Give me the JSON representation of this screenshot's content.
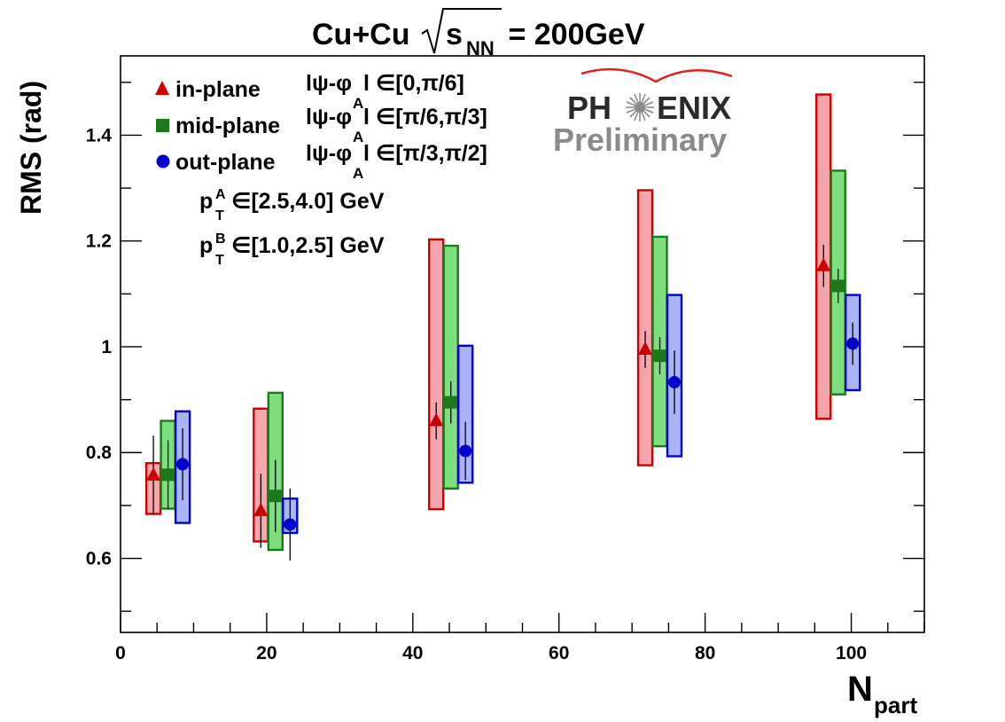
{
  "chart_data": {
    "type": "scatter",
    "title": {
      "main": "Cu+Cu",
      "sqrt": "s",
      "sub": "NN",
      "tail": " = 200GeV"
    },
    "xlabel": {
      "main": "N",
      "sub": "part"
    },
    "ylabel": "RMS (rad)",
    "xlim": [
      0,
      110
    ],
    "ylim": [
      0.46,
      1.55
    ],
    "x_ticks": [
      0,
      20,
      40,
      60,
      80,
      100
    ],
    "x_tick_labels": [
      "0",
      "20",
      "40",
      "60",
      "80",
      "100"
    ],
    "y_ticks": [
      0.6,
      0.8,
      1.0,
      1.2,
      1.4
    ],
    "y_tick_labels": [
      "0.6",
      "0.8",
      "1",
      "1.2",
      "1.4"
    ],
    "legend_position": "top-left",
    "series": [
      {
        "name": "in-plane",
        "marker": "triangle",
        "color": "#cc0000",
        "band_fill": "#f4a6ac",
        "band_stroke": "#cc0000",
        "x": [
          4.5,
          19.2,
          43.2,
          71.8,
          96.2
        ],
        "y": [
          0.757,
          0.69,
          0.86,
          0.995,
          1.153
        ],
        "stat_err": [
          0.075,
          0.07,
          0.035,
          0.035,
          0.04
        ],
        "sys_low": [
          0.684,
          0.632,
          0.693,
          0.776,
          0.864
        ],
        "sys_high": [
          0.78,
          0.883,
          1.203,
          1.296,
          1.477
        ]
      },
      {
        "name": "mid-plane",
        "marker": "square",
        "color": "#1a7a1a",
        "band_fill": "#7ddf7d",
        "band_stroke": "#1a7a1a",
        "x": [
          6.5,
          21.2,
          45.2,
          73.8,
          98.2
        ],
        "y": [
          0.758,
          0.718,
          0.895,
          0.983,
          1.115
        ],
        "stat_err": [
          0.065,
          0.068,
          0.04,
          0.035,
          0.032
        ],
        "sys_low": [
          0.694,
          0.616,
          0.732,
          0.812,
          0.91
        ],
        "sys_high": [
          0.86,
          0.913,
          1.191,
          1.208,
          1.333
        ]
      },
      {
        "name": "out-plane",
        "marker": "circle",
        "color": "#0000cc",
        "band_fill": "#a9b4f4",
        "band_stroke": "#0000cc",
        "x": [
          8.5,
          23.2,
          47.2,
          75.8,
          100.2
        ],
        "y": [
          0.778,
          0.664,
          0.803,
          0.933,
          1.006
        ],
        "stat_err": [
          0.068,
          0.068,
          0.055,
          0.06,
          0.04
        ],
        "sys_low": [
          0.667,
          0.648,
          0.743,
          0.793,
          0.918
        ],
        "sys_high": [
          0.878,
          0.713,
          1.002,
          1.098,
          1.098
        ]
      }
    ],
    "legend": [
      {
        "label": "in-plane",
        "cond_pre": "l",
        "cond_psi": "ψ-φ",
        "cond_sub": "A",
        "cond_post": "l ∈[0,π/6]"
      },
      {
        "label": "mid-plane",
        "cond_pre": "l",
        "cond_psi": "ψ-φ",
        "cond_sub": "A",
        "cond_post": "l ∈[π/6,π/3]"
      },
      {
        "label": "out-plane",
        "cond_pre": "l",
        "cond_psi": "ψ-φ",
        "cond_sub": "A",
        "cond_post": "l ∈[π/3,π/2]"
      }
    ],
    "annotations": [
      {
        "p": "p",
        "sup": "A",
        "sub": "T",
        "text": " ∈[2.5,4.0] GeV"
      },
      {
        "p": "p",
        "sup": "B",
        "sub": "T",
        "text": " ∈[1.0,2.5] GeV"
      }
    ],
    "logo": {
      "text_left": "PH",
      "text_right": "ENIX",
      "subtitle": "Preliminary"
    }
  }
}
